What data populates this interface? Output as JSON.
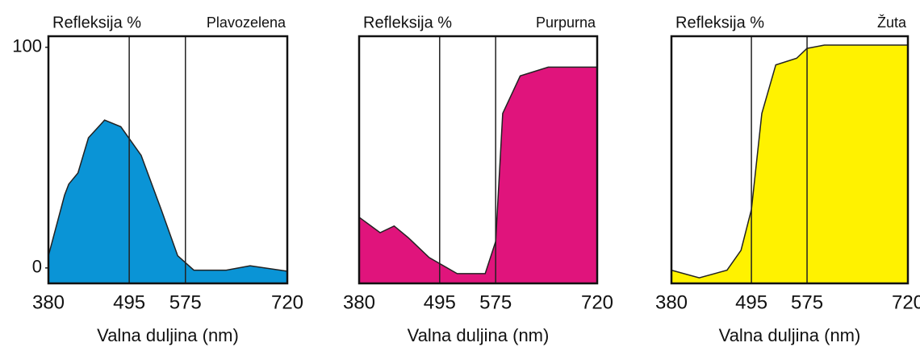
{
  "chart_data": [
    {
      "type": "area",
      "title": "Plavozelena",
      "ylabel": "Refleksija %",
      "xlabel": "Valna duljina (nm)",
      "color": "#0a94d6",
      "x": [
        380,
        403,
        409,
        422,
        437,
        460,
        483,
        512,
        541,
        564,
        587,
        633,
        667,
        720
      ],
      "values": [
        5.5,
        33,
        38,
        43,
        59,
        67,
        64,
        51,
        26,
        5.5,
        -1,
        -1,
        1,
        -1.5
      ],
      "xlim": [
        380,
        720
      ],
      "ylim": [
        -7,
        105
      ],
      "xticks": [
        380,
        495,
        575,
        720
      ],
      "yticks": [
        0,
        100
      ]
    },
    {
      "type": "area",
      "title": "Purpurna",
      "ylabel": "Refleksija %",
      "xlabel": "Valna duljina (nm)",
      "color": "#e0147c",
      "x": [
        380,
        410,
        430,
        450,
        480,
        520,
        560,
        575,
        585,
        610,
        650,
        720
      ],
      "values": [
        23,
        16,
        19,
        13.8,
        4.7,
        -2.6,
        -2.6,
        12,
        70,
        87,
        91,
        91
      ],
      "xlim": [
        380,
        720
      ],
      "ylim": [
        -7,
        105
      ],
      "xticks": [
        380,
        495,
        575,
        720
      ]
    },
    {
      "type": "area",
      "title": "Žuta",
      "ylabel": "Refleksija %",
      "xlabel": "Valna duljina (nm)",
      "color": "#fff200",
      "x": [
        380,
        420,
        460,
        480,
        495,
        510,
        530,
        560,
        575,
        600,
        720
      ],
      "values": [
        -1,
        -4.5,
        -1,
        8,
        26.5,
        70,
        92,
        95,
        99.5,
        101,
        101
      ],
      "xlim": [
        380,
        720
      ],
      "ylim": [
        -7,
        105
      ],
      "xticks": [
        380,
        495,
        575,
        720
      ]
    }
  ]
}
